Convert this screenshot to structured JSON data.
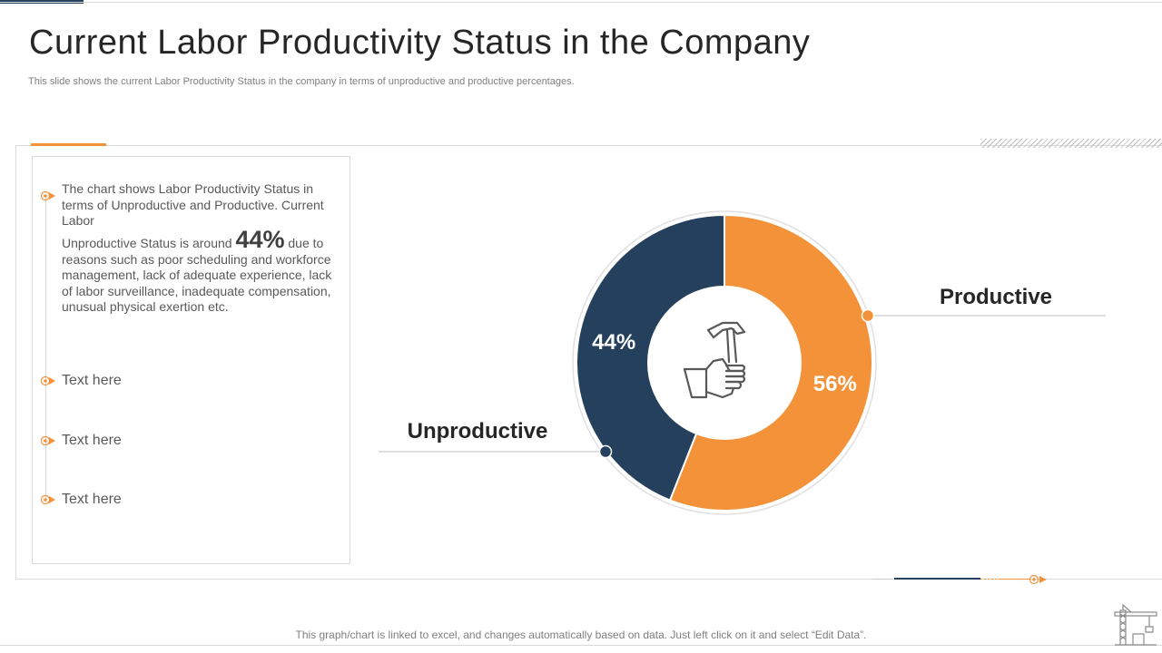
{
  "header": {
    "title": "Current Labor Productivity Status in the Company",
    "subtitle": "This slide shows the current Labor Productivity Status in the company in terms of unproductive and productive percentages."
  },
  "text_panel": {
    "paragraph_part1": "The chart shows Labor Productivity Status in terms of Unproductive and Productive. Current Labor",
    "paragraph_part2a": "Unproductive Status is around ",
    "highlight_value": "44%",
    "paragraph_part2b": " due to reasons such as poor scheduling and workforce management, lack of adequate experience, lack of labor surveillance, inadequate  compensation, unusual physical exertion etc.",
    "items": [
      "Text here",
      "Text here",
      "Text here"
    ]
  },
  "footer": {
    "note": "This graph/chart is linked to excel,  and changes automatically based on data. Just left click on it and select “Edit Data”."
  },
  "colors": {
    "accent": "#f39239",
    "navy": "#24405c"
  },
  "icons": {
    "center": "hand-hammer-icon",
    "bullet": "orange-target-arrow-icon",
    "corner": "crane-icon"
  },
  "chart_data": {
    "type": "pie",
    "variant": "donut",
    "categories": [
      "Productive",
      "Unproductive"
    ],
    "values": [
      56,
      44
    ],
    "value_labels": [
      "56%",
      "44%"
    ],
    "colors": [
      "#f39239",
      "#24405c"
    ]
  }
}
